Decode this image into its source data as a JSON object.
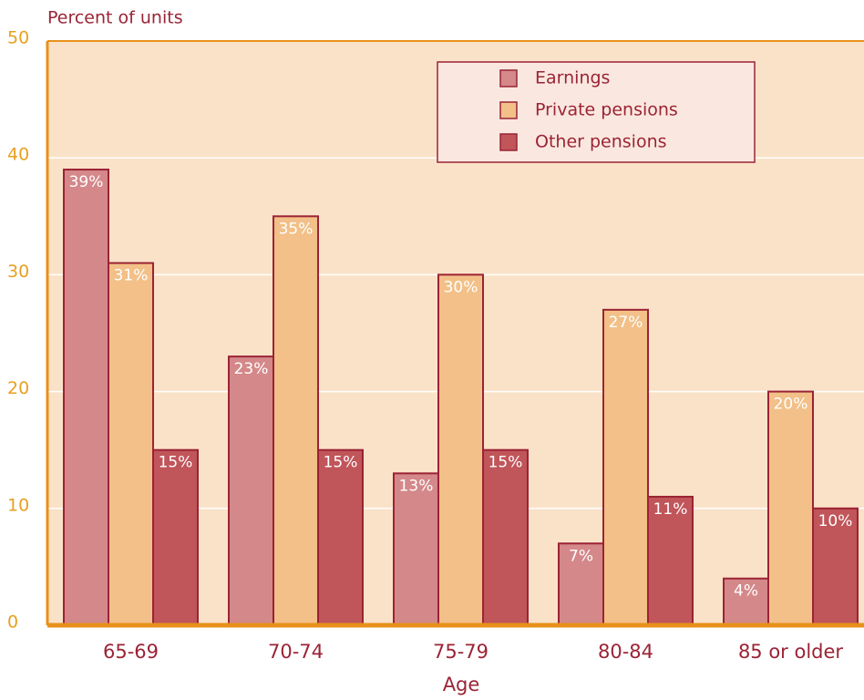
{
  "chart_data": {
    "type": "bar",
    "y_label": "Percent of units",
    "x_label": "Age",
    "categories": [
      "65-69",
      "70-74",
      "75-79",
      "80-84",
      "85 or older"
    ],
    "series": [
      {
        "name": "Earnings",
        "color": "#d4888a",
        "values": [
          39,
          23,
          13,
          7,
          4
        ],
        "value_labels": [
          "39%",
          "23%",
          "13%",
          "7%",
          "4%"
        ]
      },
      {
        "name": "Private pensions",
        "color": "#f2c088",
        "values": [
          31,
          35,
          30,
          27,
          20
        ],
        "value_labels": [
          "31%",
          "35%",
          "30%",
          "27%",
          "20%"
        ]
      },
      {
        "name": "Other pensions",
        "color": "#c0555a",
        "values": [
          15,
          15,
          15,
          11,
          10
        ],
        "value_labels": [
          "15%",
          "15%",
          "15%",
          "11%",
          "10%"
        ]
      }
    ],
    "ylim": [
      0,
      50
    ],
    "yticks": [
      0,
      10,
      20,
      30,
      40,
      50
    ],
    "grid": true
  }
}
